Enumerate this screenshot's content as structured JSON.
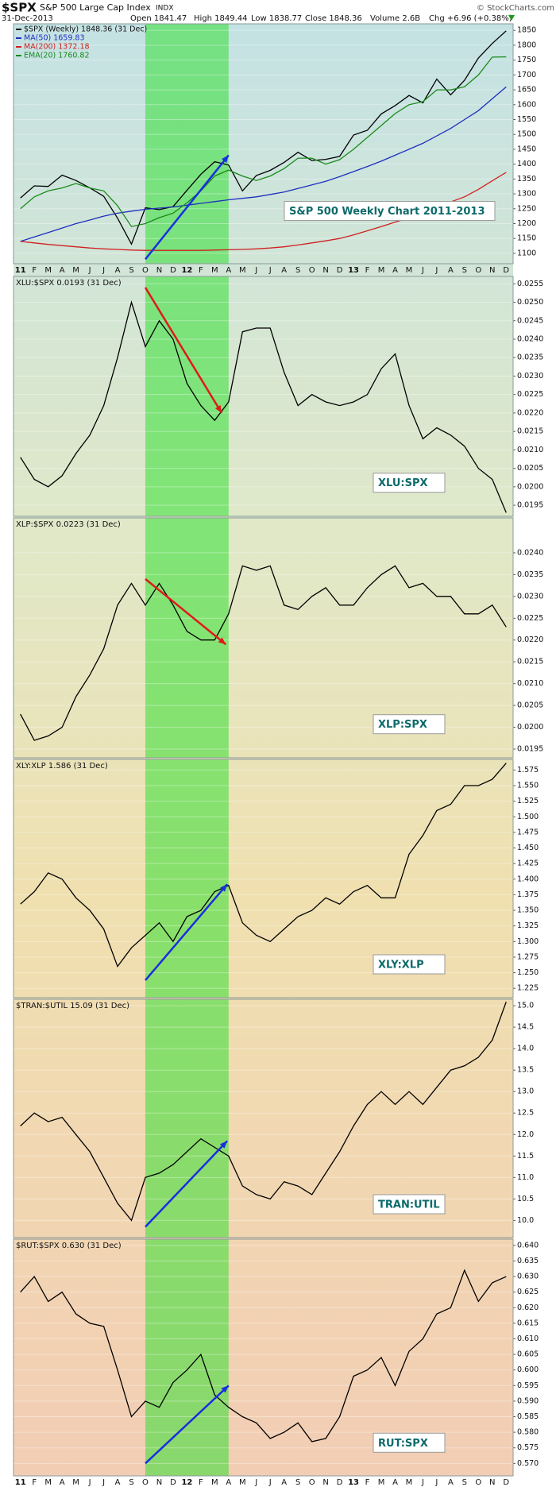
{
  "header": {
    "symbol": "$SPX",
    "name": "S&P 500 Large Cap Index",
    "exchange": "INDX",
    "date": "31-Dec-2013",
    "open": "Open 1841.47",
    "high": "High 1849.44",
    "low": "Low 1838.77",
    "close": "Close 1848.36",
    "volume": "Volume 2.6B",
    "change": "Chg +6.96 (+0.38%)",
    "credit": "© StockCharts.com"
  },
  "highlight": {
    "from": 9,
    "to": 15,
    "color": "#33e033"
  },
  "chart_data": [
    {
      "type": "line",
      "annotation": "S&P 500 Weekly Chart 2011-2013",
      "categories": [
        "11",
        "F",
        "M",
        "A",
        "M",
        "J",
        "J",
        "A",
        "S",
        "O",
        "N",
        "D",
        "12",
        "F",
        "M",
        "A",
        "M",
        "J",
        "J",
        "A",
        "S",
        "O",
        "N",
        "D",
        "13",
        "F",
        "M",
        "A",
        "M",
        "J",
        "J",
        "A",
        "S",
        "O",
        "N",
        "D"
      ],
      "series": [
        {
          "name": "$SPX (Weekly) 1848.36 (31 Dec)",
          "color": "#000000",
          "values": [
            1286,
            1327,
            1325,
            1363,
            1345,
            1320,
            1292,
            1218,
            1131,
            1253,
            1247,
            1257,
            1312,
            1366,
            1408,
            1397,
            1310,
            1362,
            1379,
            1406,
            1440,
            1412,
            1416,
            1426,
            1498,
            1514,
            1569,
            1597,
            1631,
            1606,
            1686,
            1633,
            1682,
            1757,
            1806,
            1848.36
          ]
        },
        {
          "name": "MA(50) 1659.83",
          "color": "#1f2fc0",
          "values": [
            1140,
            1155,
            1170,
            1185,
            1200,
            1212,
            1225,
            1235,
            1242,
            1248,
            1252,
            1256,
            1262,
            1268,
            1274,
            1280,
            1285,
            1290,
            1298,
            1306,
            1318,
            1330,
            1342,
            1358,
            1375,
            1392,
            1410,
            1430,
            1450,
            1470,
            1495,
            1520,
            1550,
            1580,
            1620,
            1659.83
          ]
        },
        {
          "name": "MA(200) 1372.18",
          "color": "#d02020",
          "values": [
            1140,
            1135,
            1130,
            1126,
            1122,
            1118,
            1115,
            1113,
            1111,
            1110,
            1110,
            1110,
            1110,
            1110,
            1111,
            1112,
            1113,
            1115,
            1118,
            1122,
            1128,
            1135,
            1142,
            1150,
            1162,
            1176,
            1190,
            1205,
            1220,
            1238,
            1256,
            1273,
            1290,
            1315,
            1344,
            1372.18
          ]
        },
        {
          "name": "EMA(20) 1760.82",
          "color": "#1a8a1a",
          "values": [
            1250,
            1290,
            1310,
            1320,
            1335,
            1320,
            1310,
            1260,
            1190,
            1200,
            1220,
            1235,
            1270,
            1310,
            1360,
            1380,
            1360,
            1345,
            1360,
            1385,
            1420,
            1420,
            1400,
            1415,
            1450,
            1490,
            1530,
            1570,
            1600,
            1610,
            1650,
            1650,
            1660,
            1700,
            1760,
            1760.82
          ]
        }
      ],
      "ylim": [
        1065,
        1872
      ],
      "yticks": [
        1100,
        1150,
        1200,
        1250,
        1300,
        1350,
        1400,
        1450,
        1500,
        1550,
        1600,
        1650,
        1700,
        1750,
        1800,
        1850
      ],
      "arrows": [
        {
          "from": [
            9,
            1080
          ],
          "to": [
            15,
            1430
          ],
          "color": "#1a2ee0"
        }
      ]
    },
    {
      "type": "line",
      "title": "XLU:$SPX 0.0193 (31 Dec)",
      "annotation": "XLU:SPX",
      "color": "#000000",
      "values": [
        0.0208,
        0.0202,
        0.02,
        0.0203,
        0.0209,
        0.0214,
        0.0222,
        0.0235,
        0.025,
        0.0238,
        0.0245,
        0.024,
        0.0228,
        0.0222,
        0.0218,
        0.0223,
        0.0242,
        0.0243,
        0.0243,
        0.0231,
        0.0222,
        0.0225,
        0.0223,
        0.0222,
        0.0223,
        0.0225,
        0.0232,
        0.0236,
        0.0222,
        0.0213,
        0.0216,
        0.0214,
        0.0211,
        0.0205,
        0.0202,
        0.0193
      ],
      "ylim": [
        0.0192,
        0.0257
      ],
      "yticks": [
        0.0195,
        {
          "value": 0.02,
          "label": "0.0200"
        },
        0.0205,
        {
          "value": 0.021,
          "label": "0.0210"
        },
        0.0215,
        {
          "value": 0.022,
          "label": "0.0220"
        },
        0.0225,
        {
          "value": 0.023,
          "label": "0.0230"
        },
        0.0235,
        {
          "value": 0.024,
          "label": "0.0240"
        },
        0.0245,
        {
          "value": 0.025,
          "label": "0.0250"
        },
        0.0255
      ],
      "arrows": [
        {
          "from": [
            9,
            0.0254
          ],
          "to": [
            14.5,
            0.022
          ],
          "color": "#e01a1a"
        }
      ]
    },
    {
      "type": "line",
      "title": "XLP:$SPX 0.0223 (31 Dec)",
      "annotation": "XLP:SPX",
      "color": "#000000",
      "values": [
        0.0203,
        0.0197,
        0.0198,
        0.02,
        0.0207,
        0.0212,
        0.0218,
        0.0228,
        0.0233,
        0.0228,
        0.0233,
        0.0228,
        0.0222,
        0.022,
        0.022,
        0.0226,
        0.0237,
        0.0236,
        0.0237,
        0.0228,
        0.0227,
        0.023,
        0.0232,
        0.0228,
        0.0228,
        0.0232,
        0.0235,
        0.0237,
        0.0232,
        0.0233,
        0.023,
        0.023,
        0.0226,
        0.0226,
        0.0228,
        0.0223
      ],
      "ylim": [
        0.0193,
        0.0248
      ],
      "yticks": [
        0.0195,
        {
          "value": 0.02,
          "label": "0.0200"
        },
        0.0205,
        {
          "value": 0.021,
          "label": "0.0210"
        },
        0.0215,
        {
          "value": 0.022,
          "label": "0.0220"
        },
        0.0225,
        {
          "value": 0.023,
          "label": "0.0230"
        },
        0.0235,
        {
          "value": 0.024,
          "label": "0.0240"
        }
      ],
      "arrows": [
        {
          "from": [
            9,
            0.0234
          ],
          "to": [
            14.8,
            0.0219
          ],
          "color": "#e01a1a"
        }
      ]
    },
    {
      "type": "line",
      "title": "XLY:XLP 1.586 (31 Dec)",
      "annotation": "XLY:XLP",
      "color": "#000000",
      "values": [
        1.36,
        1.38,
        1.41,
        1.4,
        1.37,
        1.35,
        1.32,
        1.26,
        1.29,
        1.31,
        1.33,
        1.3,
        1.34,
        1.35,
        1.38,
        1.39,
        1.33,
        1.31,
        1.3,
        1.32,
        1.34,
        1.35,
        1.37,
        1.36,
        1.38,
        1.39,
        1.37,
        1.37,
        1.44,
        1.47,
        1.51,
        1.52,
        1.55,
        1.55,
        1.56,
        1.586
      ],
      "ylim": [
        1.21,
        1.592
      ],
      "yticks": [
        1.225,
        {
          "value": 1.25,
          "label": "1.250"
        },
        1.275,
        {
          "value": 1.3,
          "label": "1.300"
        },
        1.325,
        {
          "value": 1.35,
          "label": "1.350"
        },
        1.375,
        {
          "value": 1.4,
          "label": "1.400"
        },
        1.425,
        {
          "value": 1.45,
          "label": "1.450"
        },
        1.475,
        {
          "value": 1.5,
          "label": "1.500"
        },
        1.525,
        {
          "value": 1.55,
          "label": "1.550"
        },
        1.575
      ],
      "arrows": [
        {
          "from": [
            9,
            1.238
          ],
          "to": [
            14.9,
            1.392
          ],
          "color": "#1a2ee0"
        }
      ]
    },
    {
      "type": "line",
      "title": "$TRAN:$UTIL 15.09 (31 Dec)",
      "annotation": "TRAN:UTIL",
      "color": "#000000",
      "values": [
        12.2,
        12.5,
        12.3,
        12.4,
        12.0,
        11.6,
        11.0,
        10.4,
        10.0,
        11.0,
        11.1,
        11.3,
        11.6,
        11.9,
        11.7,
        11.5,
        10.8,
        10.6,
        10.5,
        10.9,
        10.8,
        10.6,
        11.1,
        11.6,
        12.2,
        12.7,
        13.0,
        12.7,
        13.0,
        12.7,
        13.1,
        13.5,
        13.6,
        13.8,
        14.2,
        15.09
      ],
      "ylim": [
        9.6,
        15.15
      ],
      "yticks": [
        {
          "value": 10,
          "label": "10.0"
        },
        10.5,
        {
          "value": 11,
          "label": "11.0"
        },
        11.5,
        {
          "value": 12,
          "label": "12.0"
        },
        12.5,
        {
          "value": 13,
          "label": "13.0"
        },
        13.5,
        {
          "value": 14,
          "label": "14.0"
        },
        14.5,
        {
          "value": 15,
          "label": "15.0"
        }
      ],
      "arrows": [
        {
          "from": [
            9,
            9.85
          ],
          "to": [
            14.9,
            11.85
          ],
          "color": "#1a2ee0"
        }
      ]
    },
    {
      "type": "line",
      "title": "$RUT:$SPX 0.630 (31 Dec)",
      "annotation": "RUT:SPX",
      "color": "#000000",
      "categories": [
        "11",
        "F",
        "M",
        "A",
        "M",
        "J",
        "J",
        "A",
        "S",
        "O",
        "N",
        "D",
        "12",
        "F",
        "M",
        "A",
        "M",
        "J",
        "J",
        "A",
        "S",
        "O",
        "N",
        "D",
        "13",
        "F",
        "M",
        "A",
        "M",
        "J",
        "J",
        "A",
        "S",
        "O",
        "N",
        "D"
      ],
      "values": [
        0.625,
        0.63,
        0.622,
        0.625,
        0.618,
        0.615,
        0.614,
        0.6,
        0.585,
        0.59,
        0.588,
        0.596,
        0.6,
        0.605,
        0.592,
        0.588,
        0.585,
        0.583,
        0.578,
        0.58,
        0.583,
        0.577,
        0.578,
        0.585,
        0.598,
        0.6,
        0.604,
        0.595,
        0.606,
        0.61,
        0.618,
        0.62,
        0.632,
        0.622,
        0.628,
        0.63
      ],
      "ylim": [
        0.566,
        0.642
      ],
      "yticks": [
        {
          "value": 0.57,
          "label": "0.570"
        },
        0.575,
        {
          "value": 0.58,
          "label": "0.580"
        },
        0.585,
        {
          "value": 0.59,
          "label": "0.590"
        },
        0.595,
        {
          "value": 0.6,
          "label": "0.600"
        },
        0.605,
        {
          "value": 0.61,
          "label": "0.610"
        },
        0.615,
        {
          "value": 0.62,
          "label": "0.620"
        },
        0.625,
        {
          "value": 0.63,
          "label": "0.630"
        },
        0.635,
        {
          "value": 0.64,
          "label": "0.640"
        }
      ],
      "arrows": [
        {
          "from": [
            9,
            0.57
          ],
          "to": [
            15,
            0.595
          ],
          "color": "#1a2ee0"
        }
      ]
    }
  ]
}
